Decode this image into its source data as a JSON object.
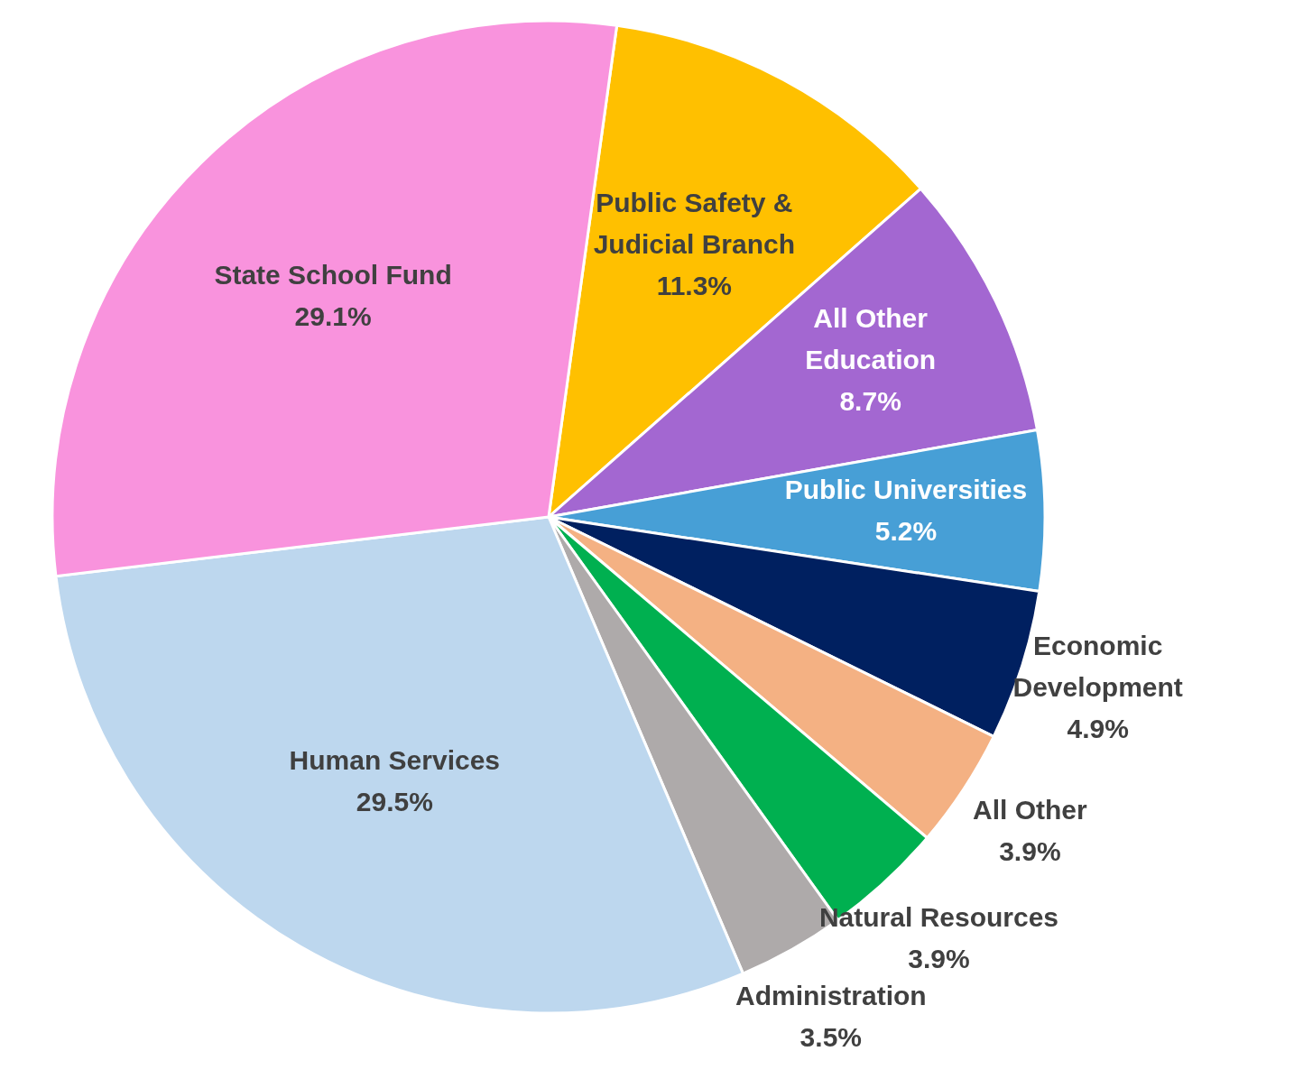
{
  "chart_data": {
    "type": "pie",
    "categories": [
      "Public Safety &\nJudicial Branch",
      "All Other\nEducation",
      "Public Universities",
      "Economic\nDevelopment",
      "All Other",
      "Natural Resources",
      "Administration",
      "Human Services",
      "State School Fund"
    ],
    "values": [
      11.3,
      8.7,
      5.2,
      4.9,
      3.9,
      3.9,
      3.5,
      29.5,
      29.1
    ],
    "colors": [
      "#ffc000",
      "#a367d1",
      "#479fd6",
      "#002060",
      "#f4b183",
      "#00b050",
      "#aeaaaa",
      "#bdd7ee",
      "#f993dd"
    ],
    "value_labels": [
      "11.3%",
      "8.7%",
      "5.2%",
      "4.9%",
      "3.9%",
      "3.9%",
      "3.5%",
      "29.5%",
      "29.1%"
    ]
  }
}
